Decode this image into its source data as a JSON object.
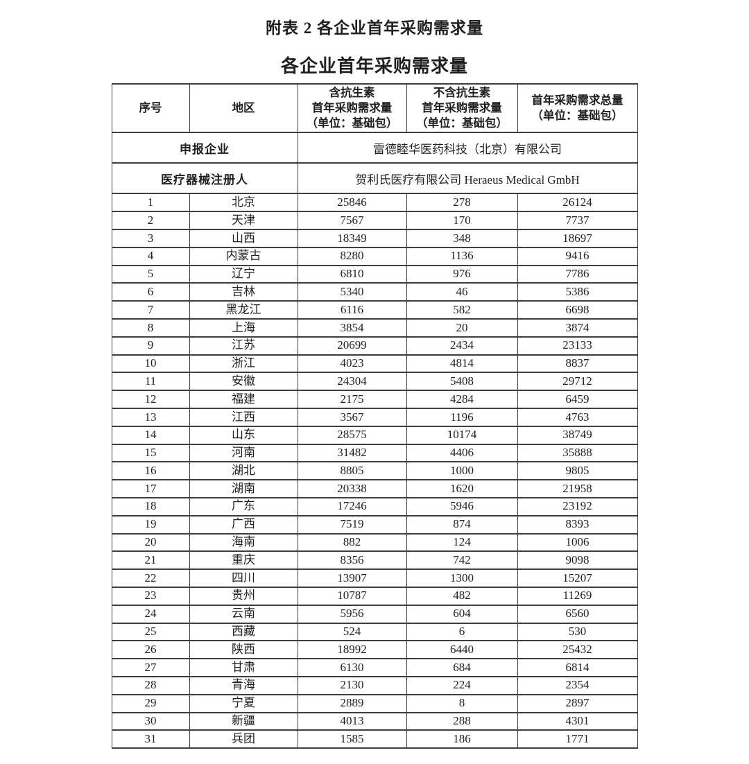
{
  "page": {
    "title": "附表 2  各企业首年采购需求量",
    "subtitle": "各企业首年采购需求量"
  },
  "table": {
    "headers": {
      "serial": "序号",
      "region": "地区",
      "with_antibiotic": "含抗生素\n首年采购需求量\n（单位：基础包）",
      "without_antibiotic": "不含抗生素\n首年采购需求量\n（单位：基础包）",
      "total": "首年采购需求总量\n（单位：基础包）"
    },
    "info_rows": [
      {
        "label": "申报企业",
        "value": "雷德睦华医药科技（北京）有限公司"
      },
      {
        "label": "医疗器械注册人",
        "value": "贺利氏医疗有限公司 Heraeus Medical GmbH"
      }
    ],
    "rows": [
      [
        "1",
        "北京",
        "25846",
        "278",
        "26124"
      ],
      [
        "2",
        "天津",
        "7567",
        "170",
        "7737"
      ],
      [
        "3",
        "山西",
        "18349",
        "348",
        "18697"
      ],
      [
        "4",
        "内蒙古",
        "8280",
        "1136",
        "9416"
      ],
      [
        "5",
        "辽宁",
        "6810",
        "976",
        "7786"
      ],
      [
        "6",
        "吉林",
        "5340",
        "46",
        "5386"
      ],
      [
        "7",
        "黑龙江",
        "6116",
        "582",
        "6698"
      ],
      [
        "8",
        "上海",
        "3854",
        "20",
        "3874"
      ],
      [
        "9",
        "江苏",
        "20699",
        "2434",
        "23133"
      ],
      [
        "10",
        "浙江",
        "4023",
        "4814",
        "8837"
      ],
      [
        "11",
        "安徽",
        "24304",
        "5408",
        "29712"
      ],
      [
        "12",
        "福建",
        "2175",
        "4284",
        "6459"
      ],
      [
        "13",
        "江西",
        "3567",
        "1196",
        "4763"
      ],
      [
        "14",
        "山东",
        "28575",
        "10174",
        "38749"
      ],
      [
        "15",
        "河南",
        "31482",
        "4406",
        "35888"
      ],
      [
        "16",
        "湖北",
        "8805",
        "1000",
        "9805"
      ],
      [
        "17",
        "湖南",
        "20338",
        "1620",
        "21958"
      ],
      [
        "18",
        "广东",
        "17246",
        "5946",
        "23192"
      ],
      [
        "19",
        "广西",
        "7519",
        "874",
        "8393"
      ],
      [
        "20",
        "海南",
        "882",
        "124",
        "1006"
      ],
      [
        "21",
        "重庆",
        "8356",
        "742",
        "9098"
      ],
      [
        "22",
        "四川",
        "13907",
        "1300",
        "15207"
      ],
      [
        "23",
        "贵州",
        "10787",
        "482",
        "11269"
      ],
      [
        "24",
        "云南",
        "5956",
        "604",
        "6560"
      ],
      [
        "25",
        "西藏",
        "524",
        "6",
        "530"
      ],
      [
        "26",
        "陕西",
        "18992",
        "6440",
        "25432"
      ],
      [
        "27",
        "甘肃",
        "6130",
        "684",
        "6814"
      ],
      [
        "28",
        "青海",
        "2130",
        "224",
        "2354"
      ],
      [
        "29",
        "宁夏",
        "2889",
        "8",
        "2897"
      ],
      [
        "30",
        "新疆",
        "4013",
        "288",
        "4301"
      ],
      [
        "31",
        "兵团",
        "1585",
        "186",
        "1771"
      ]
    ]
  }
}
